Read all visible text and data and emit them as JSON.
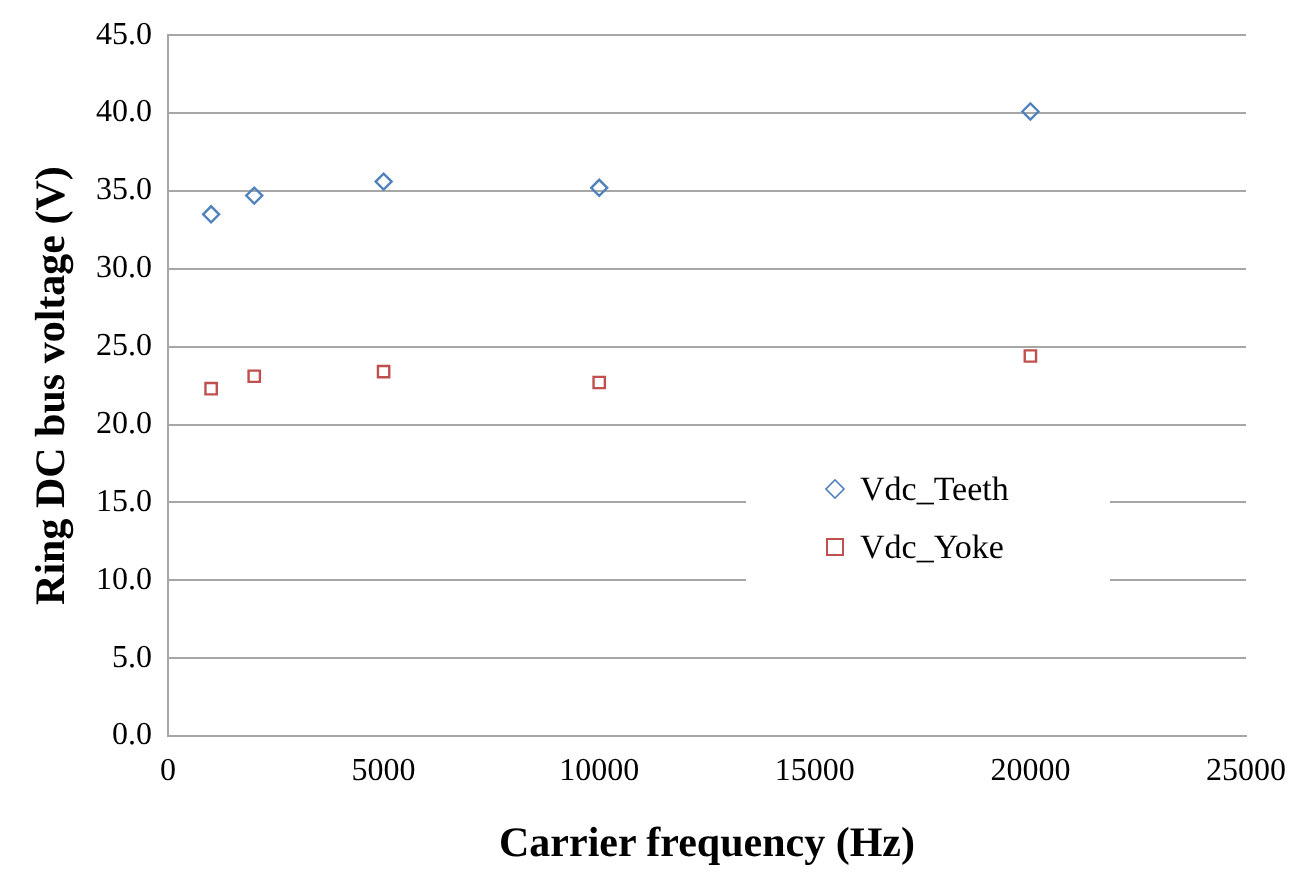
{
  "chart_data": {
    "type": "scatter",
    "xlabel": "Carrier frequency (Hz)",
    "ylabel": "Ring DC bus voltage (V)",
    "x": [
      1000,
      2000,
      5000,
      10000,
      20000
    ],
    "series": [
      {
        "name": "Vdc_Teeth",
        "color": "#4f81bd",
        "marker": "diamond",
        "values": [
          33.5,
          34.7,
          35.6,
          35.2,
          40.1
        ]
      },
      {
        "name": "Vdc_Yoke",
        "color": "#c0504d",
        "marker": "square",
        "values": [
          22.3,
          23.1,
          23.4,
          22.7,
          24.4
        ]
      }
    ],
    "xlim": [
      0,
      25000
    ],
    "xticks": [
      0,
      5000,
      10000,
      15000,
      20000,
      25000
    ],
    "ylim": [
      0,
      45
    ],
    "yticks": [
      {
        "value": 0,
        "label": "0.0"
      },
      {
        "value": 5,
        "label": "5.0"
      },
      {
        "value": 10,
        "label": "10.0"
      },
      {
        "value": 15,
        "label": "15.0"
      },
      {
        "value": 20,
        "label": "20.0"
      },
      {
        "value": 25,
        "label": "25.0"
      },
      {
        "value": 30,
        "label": "30.0"
      },
      {
        "value": 35,
        "label": "35.0"
      },
      {
        "value": 40,
        "label": "40.0"
      },
      {
        "value": 45,
        "label": "45.0"
      }
    ],
    "grid": "y",
    "legend": "right"
  }
}
